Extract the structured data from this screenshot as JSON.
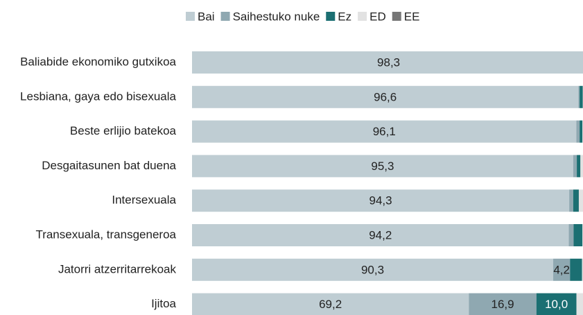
{
  "chart_data": {
    "type": "stacked-bar-horizontal",
    "categories": [
      "Baliabide ekonomiko gutxikoa",
      "Lesbiana, gaya edo bisexuala",
      "Beste erlijio batekoa",
      "Desgaitasunen bat duena",
      "Intersexuala",
      "Transexuala, transgeneroa",
      "Jatorri atzerritarrekoak",
      "Ijitoa"
    ],
    "xlim": [
      0,
      100
    ],
    "series": [
      {
        "name": "Bai",
        "color": "#bfcdd3",
        "values": [
          98.3,
          96.6,
          96.1,
          95.3,
          94.3,
          94.2,
          90.3,
          69.2
        ],
        "value_labels": [
          "98,3",
          "96,6",
          "96,1",
          "95,3",
          "94,3",
          "94,2",
          "90,3",
          "69,2"
        ]
      },
      {
        "name": "Saihestuko nuke",
        "color": "#8fa8b1",
        "values": [
          0,
          0.3,
          0.8,
          0.9,
          1.0,
          1.2,
          4.2,
          16.9
        ],
        "value_labels": [
          null,
          null,
          null,
          null,
          null,
          null,
          "4,2",
          "16,9"
        ]
      },
      {
        "name": "Ez",
        "color": "#1b6f72",
        "values": [
          0,
          0.8,
          0.7,
          0.9,
          1.4,
          2.2,
          3.0,
          10.0
        ],
        "value_labels": [
          null,
          null,
          null,
          null,
          null,
          null,
          null,
          "10,0"
        ]
      },
      {
        "name": "ED",
        "color": "#e2e2e2",
        "values": [
          1.7,
          2.3,
          2.4,
          2.9,
          3.3,
          2.4,
          2.5,
          3.9
        ]
      },
      {
        "name": "EE",
        "color": "#777777",
        "values": [
          0,
          0,
          0,
          0,
          0,
          0,
          0,
          0
        ]
      }
    ],
    "legend": "top"
  }
}
